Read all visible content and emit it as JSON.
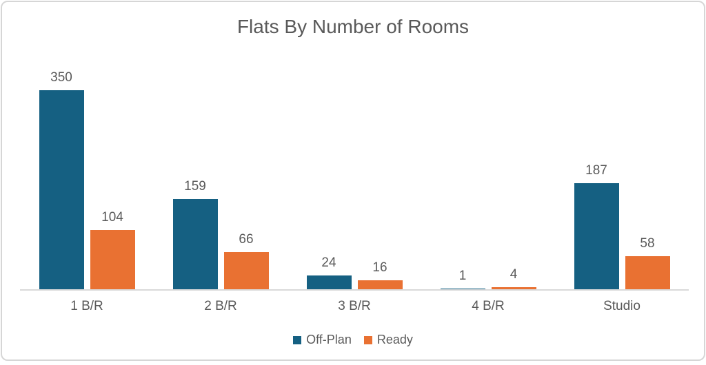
{
  "chart_data": {
    "type": "bar",
    "title": "Flats By Number of Rooms",
    "categories": [
      "1 B/R",
      "2 B/R",
      "3 B/R",
      "4 B/R",
      "Studio"
    ],
    "series": [
      {
        "name": "Off-Plan",
        "color": "#156082",
        "values": [
          350,
          159,
          24,
          1,
          187
        ]
      },
      {
        "name": "Ready",
        "color": "#E97132",
        "values": [
          104,
          66,
          16,
          4,
          58
        ]
      }
    ],
    "data_labels": true,
    "grid": false,
    "y_axis_visible": false,
    "ylim": [
      0,
      422
    ],
    "legend_position": "bottom",
    "text_color": "#595959",
    "axis_line_color": "#D9D9D9"
  }
}
